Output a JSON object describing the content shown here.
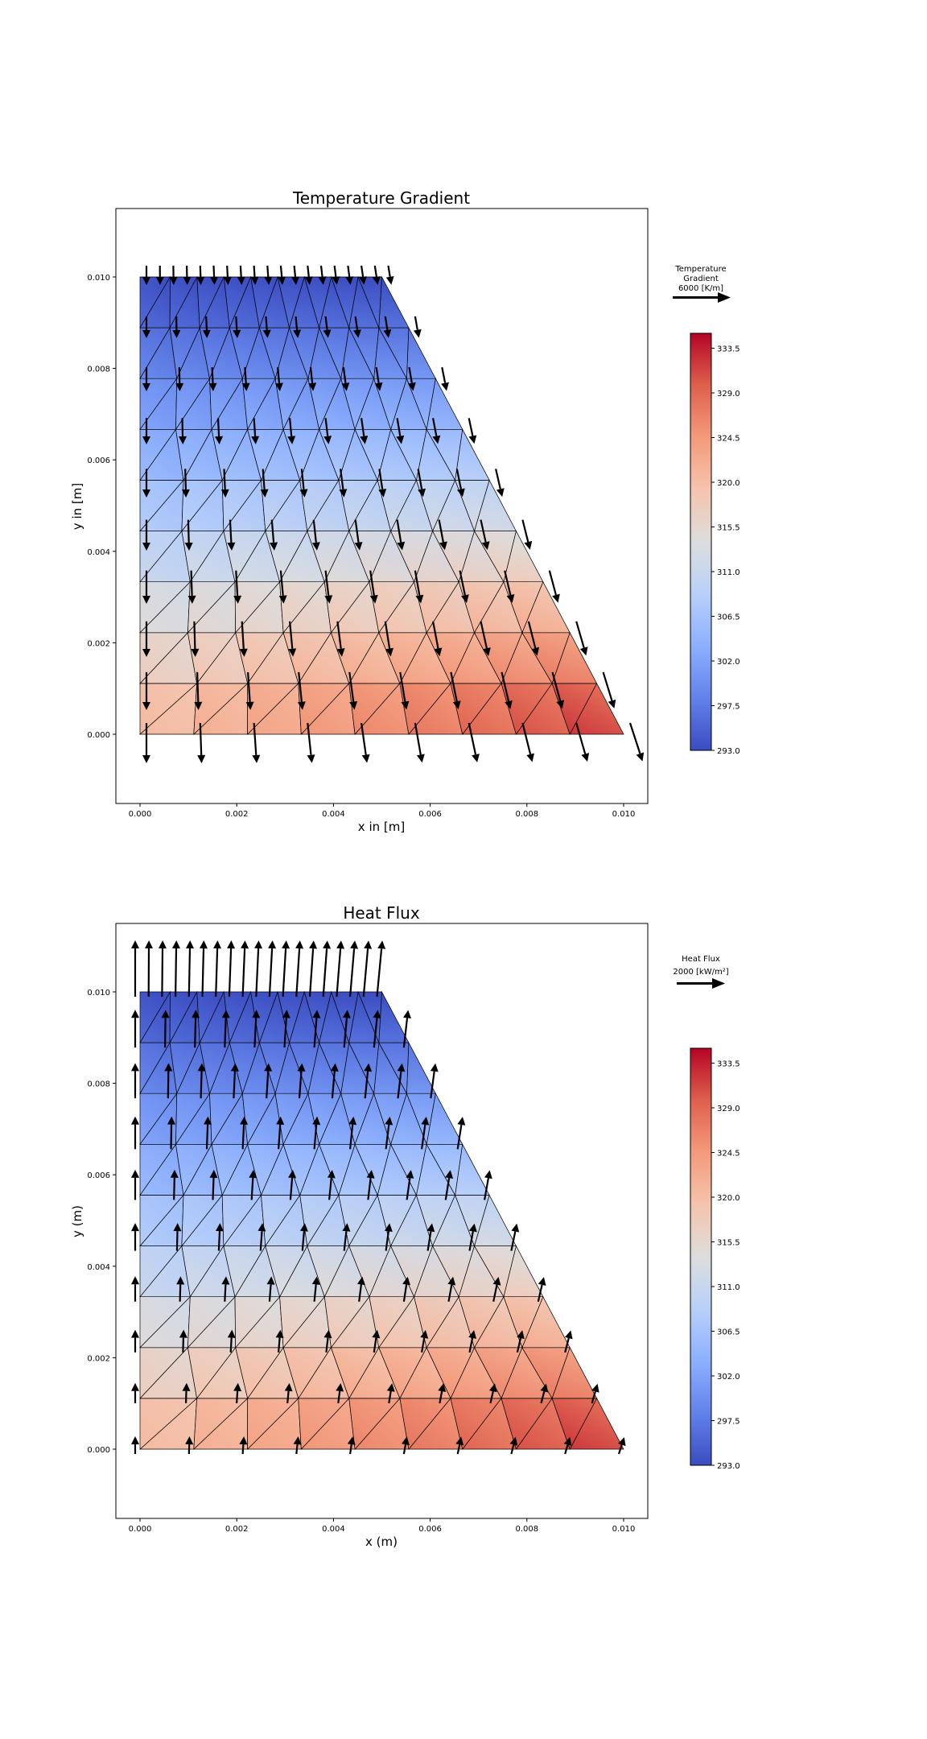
{
  "chart_data": [
    {
      "type": "heatmap",
      "subtype": "triangular-mesh-with-quiver",
      "title": "Temperature Gradient",
      "xlabel": "x in [m]",
      "ylabel": "y in [m]",
      "x_ticks": [
        "0.000",
        "0.002",
        "0.004",
        "0.006",
        "0.008",
        "0.010"
      ],
      "y_ticks": [
        "0.000",
        "0.002",
        "0.004",
        "0.006",
        "0.008",
        "0.010"
      ],
      "xlim": [
        -0.0005,
        0.0105
      ],
      "ylim": [
        -0.0015,
        0.0115
      ],
      "domain": {
        "shape": "trapezoid",
        "vertices": [
          [
            0,
            0
          ],
          [
            0.01,
            0
          ],
          [
            0.005,
            0.01
          ],
          [
            0,
            0.01
          ]
        ],
        "mesh_rows": 9,
        "mesh_cols": 9
      },
      "temperature_field": {
        "min": 293.0,
        "max": 333.5,
        "hottest_corner": [
          0.01,
          0.0
        ],
        "coldest_edge": "top"
      },
      "vector_field": {
        "name": "Temperature Gradient",
        "direction": "down",
        "reference_magnitude": 6000,
        "reference_label": "6000 [K/m]"
      },
      "quiver_key": {
        "line1": "Temperature",
        "line2": "Gradient",
        "line3": "6000 [K/m]"
      },
      "colorbar": {
        "colormap": "coolwarm",
        "min": 293.0,
        "max": 335.0,
        "ticks": [
          "293.0",
          "297.5",
          "302.0",
          "306.5",
          "311.0",
          "315.5",
          "320.0",
          "324.5",
          "329.0",
          "333.5"
        ]
      }
    },
    {
      "type": "heatmap",
      "subtype": "triangular-mesh-with-quiver",
      "title": "Heat Flux",
      "xlabel": "x (m)",
      "ylabel": "y (m)",
      "x_ticks": [
        "0.000",
        "0.002",
        "0.004",
        "0.006",
        "0.008",
        "0.010"
      ],
      "y_ticks": [
        "0.000",
        "0.002",
        "0.004",
        "0.006",
        "0.008",
        "0.010"
      ],
      "xlim": [
        -0.0005,
        0.0105
      ],
      "ylim": [
        -0.0015,
        0.0115
      ],
      "domain": {
        "shape": "trapezoid",
        "vertices": [
          [
            0,
            0
          ],
          [
            0.01,
            0
          ],
          [
            0.005,
            0.01
          ],
          [
            0,
            0.01
          ]
        ],
        "mesh_rows": 9,
        "mesh_cols": 9
      },
      "temperature_field": {
        "min": 293.0,
        "max": 333.5,
        "hottest_corner": [
          0.01,
          0.0
        ],
        "coldest_edge": "top"
      },
      "vector_field": {
        "name": "Heat Flux",
        "direction": "up",
        "reference_magnitude": 2000,
        "reference_label": "2000 [kW/m²]"
      },
      "quiver_key": {
        "line1": "Heat Flux",
        "line2": "2000 [kW/m²]"
      },
      "colorbar": {
        "colormap": "coolwarm",
        "min": 293.0,
        "max": 335.0,
        "ticks": [
          "293.0",
          "297.5",
          "302.0",
          "306.5",
          "311.0",
          "315.5",
          "320.0",
          "324.5",
          "329.0",
          "333.5"
        ]
      }
    }
  ],
  "colors": {
    "cold": "#3b4cc0",
    "neutral": "#dddddd",
    "hot": "#b40426",
    "arrow": "#000000",
    "mesh": "#000000"
  }
}
